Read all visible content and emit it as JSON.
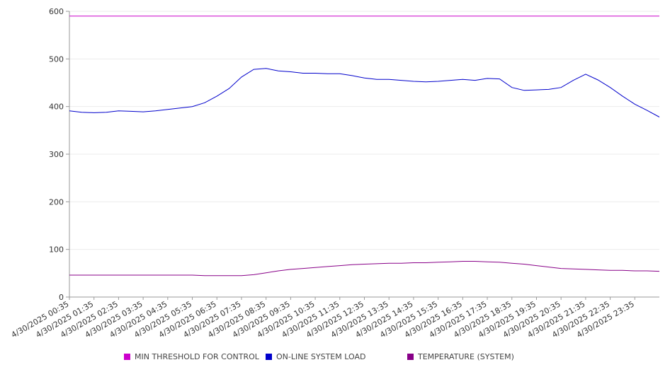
{
  "chart_data": {
    "type": "line",
    "title": "",
    "xlabel": "",
    "ylabel": "",
    "ylim": [
      0,
      600
    ],
    "yticks": [
      0,
      100,
      200,
      300,
      400,
      500,
      600
    ],
    "x_tick_labels": [
      "4/30/2025 00:35",
      "4/30/2025 01:35",
      "4/30/2025 02:35",
      "4/30/2025 03:35",
      "4/30/2025 04:35",
      "4/30/2025 05:35",
      "4/30/2025 06:35",
      "4/30/2025 07:35",
      "4/30/2025 08:35",
      "4/30/2025 09:35",
      "4/30/2025 10:35",
      "4/30/2025 11:35",
      "4/30/2025 12:35",
      "4/30/2025 13:35",
      "4/30/2025 14:35",
      "4/30/2025 15:35",
      "4/30/2025 16:35",
      "4/30/2025 17:35",
      "4/30/2025 18:35",
      "4/30/2025 19:35",
      "4/30/2025 20:35",
      "4/30/2025 21:35",
      "4/30/2025 22:35",
      "4/30/2025 23:35"
    ],
    "grid": true,
    "legend_position": "bottom",
    "x_hours": [
      0,
      0.5,
      1,
      1.5,
      2,
      2.5,
      3,
      3.5,
      4,
      4.5,
      5,
      5.5,
      6,
      6.5,
      7,
      7.5,
      8,
      8.5,
      9,
      9.5,
      10,
      10.5,
      11,
      11.5,
      12,
      12.5,
      13,
      13.5,
      14,
      14.5,
      15,
      15.5,
      16,
      16.5,
      17,
      17.5,
      18,
      18.5,
      19,
      19.5,
      20,
      20.5,
      21,
      21.5,
      22,
      22.5,
      23,
      23.5,
      24
    ],
    "series": [
      {
        "name": "MIN THRESHOLD FOR CONTROL",
        "color": "#cc00cc",
        "values": [
          590,
          590,
          590,
          590,
          590,
          590,
          590,
          590,
          590,
          590,
          590,
          590,
          590,
          590,
          590,
          590,
          590,
          590,
          590,
          590,
          590,
          590,
          590,
          590,
          590,
          590,
          590,
          590,
          590,
          590,
          590,
          590,
          590,
          590,
          590,
          590,
          590,
          590,
          590,
          590,
          590,
          590,
          590,
          590,
          590,
          590,
          590,
          590,
          590
        ]
      },
      {
        "name": "ON-LINE SYSTEM LOAD",
        "color": "#0000cc",
        "values": [
          391,
          388,
          387,
          388,
          391,
          390,
          389,
          391,
          394,
          397,
          400,
          408,
          422,
          438,
          462,
          478,
          480,
          475,
          473,
          470,
          470,
          469,
          469,
          465,
          460,
          457,
          457,
          455,
          453,
          452,
          453,
          455,
          457,
          455,
          459,
          458,
          440,
          434,
          435,
          436,
          440,
          455,
          468,
          456,
          440,
          422,
          405,
          392,
          378
        ]
      },
      {
        "name": "TEMPERATURE (SYSTEM)",
        "color": "#880088",
        "values": [
          46,
          46,
          46,
          46,
          46,
          46,
          46,
          46,
          46,
          46,
          46,
          45,
          45,
          45,
          45,
          47,
          51,
          55,
          58,
          60,
          62,
          64,
          66,
          68,
          69,
          70,
          71,
          71,
          72,
          72,
          73,
          74,
          75,
          75,
          74,
          73,
          71,
          69,
          66,
          63,
          60,
          59,
          58,
          57,
          56,
          56,
          55,
          55,
          54
        ]
      }
    ]
  }
}
